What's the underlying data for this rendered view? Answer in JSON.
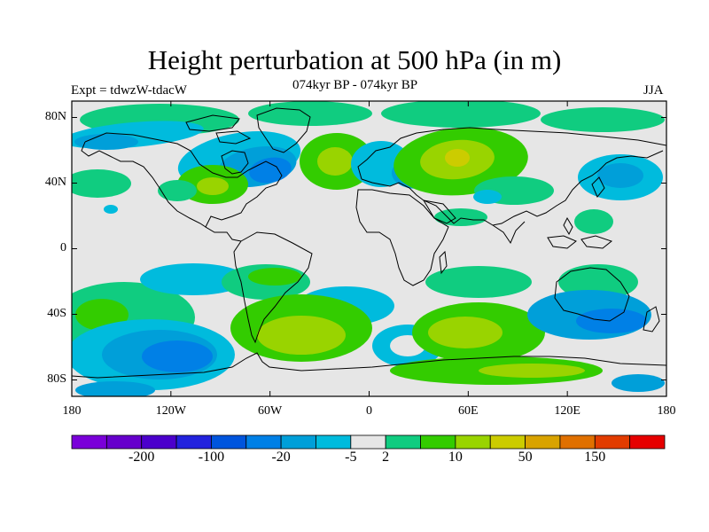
{
  "header": {
    "title": "Height perturbation at 500 hPa (in m)",
    "subtitle": "074kyr BP - 074kyr BP",
    "left_label": "Expt = tdwzW-tdacW",
    "right_label": "JJA"
  },
  "map": {
    "background_color": "#e6e6e6",
    "y_ticks": [
      {
        "label": "80N",
        "lat": 80
      },
      {
        "label": "40N",
        "lat": 40
      },
      {
        "label": "0",
        "lat": 0
      },
      {
        "label": "40S",
        "lat": -40
      },
      {
        "label": "80S",
        "lat": -80
      }
    ],
    "x_ticks": [
      {
        "label": "180",
        "lon": -180
      },
      {
        "label": "120W",
        "lon": -120
      },
      {
        "label": "60W",
        "lon": -60
      },
      {
        "label": "0",
        "lon": 0
      },
      {
        "label": "60E",
        "lon": 60
      },
      {
        "label": "120E",
        "lon": 120
      },
      {
        "label": "180",
        "lon": 180
      }
    ]
  },
  "colorbar": {
    "colors": [
      "#7a00d9",
      "#6600cc",
      "#4b00cc",
      "#2222dd",
      "#0055dd",
      "#0080e6",
      "#009fd9",
      "#00bbdd",
      "#e6e6e6",
      "#10cc80",
      "#33cc00",
      "#99d400",
      "#cccc00",
      "#d9a300",
      "#e07000",
      "#e23c00",
      "#e60000"
    ],
    "labels": [
      {
        "text": "-200",
        "boundary": 2
      },
      {
        "text": "-100",
        "boundary": 4
      },
      {
        "text": "-20",
        "boundary": 6
      },
      {
        "text": "-5",
        "boundary": 8
      },
      {
        "text": "2",
        "boundary": 9
      },
      {
        "text": "10",
        "boundary": 11
      },
      {
        "text": "50",
        "boundary": 13
      },
      {
        "text": "150",
        "boundary": 15
      }
    ]
  }
}
